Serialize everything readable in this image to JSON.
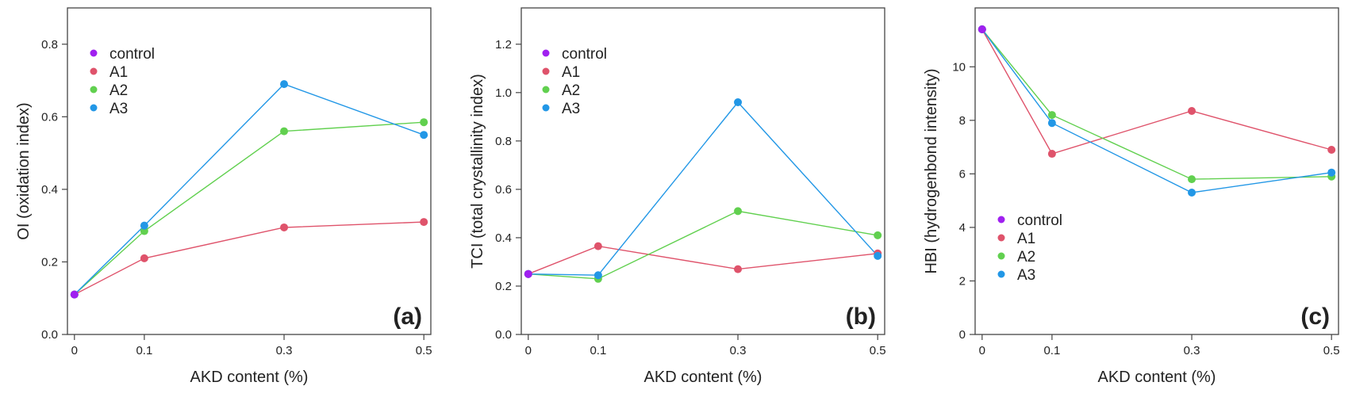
{
  "chart_data": [
    {
      "type": "line",
      "panel_tag": "(a)",
      "xlabel": "AKD content (%)",
      "ylabel": "OI (oxidation index)",
      "x": [
        0,
        0.1,
        0.3,
        0.5
      ],
      "x_tick_labels": [
        "0",
        "0.1",
        "0.3",
        "0.5"
      ],
      "ylim": [
        0,
        0.9
      ],
      "y_ticks": [
        0.0,
        0.2,
        0.4,
        0.6,
        0.8
      ],
      "y_tick_labels": [
        "0.0",
        "0.2",
        "0.4",
        "0.6",
        "0.8"
      ],
      "legend_position": "top-left",
      "series": [
        {
          "name": "control",
          "color": "#a020f0",
          "values": [
            0.11,
            null,
            null,
            null
          ]
        },
        {
          "name": "A1",
          "color": "#df536b",
          "values": [
            0.11,
            0.21,
            0.295,
            0.31
          ]
        },
        {
          "name": "A2",
          "color": "#61d04f",
          "values": [
            0.11,
            0.285,
            0.56,
            0.585
          ]
        },
        {
          "name": "A3",
          "color": "#2297e6",
          "values": [
            0.11,
            0.3,
            0.69,
            0.55
          ]
        }
      ]
    },
    {
      "type": "line",
      "panel_tag": "(b)",
      "xlabel": "AKD content (%)",
      "ylabel": "TCI (total crystallinity index)",
      "x": [
        0,
        0.1,
        0.3,
        0.5
      ],
      "x_tick_labels": [
        "0",
        "0.1",
        "0.3",
        "0.5"
      ],
      "ylim": [
        0,
        1.35
      ],
      "y_ticks": [
        0.0,
        0.2,
        0.4,
        0.6,
        0.8,
        1.0,
        1.2
      ],
      "y_tick_labels": [
        "0.0",
        "0.2",
        "0.4",
        "0.6",
        "0.8",
        "1.0",
        "1.2"
      ],
      "legend_position": "top-left",
      "series": [
        {
          "name": "control",
          "color": "#a020f0",
          "values": [
            0.25,
            null,
            null,
            null
          ]
        },
        {
          "name": "A1",
          "color": "#df536b",
          "values": [
            0.25,
            0.365,
            0.27,
            0.335
          ]
        },
        {
          "name": "A2",
          "color": "#61d04f",
          "values": [
            0.25,
            0.23,
            0.51,
            0.41
          ]
        },
        {
          "name": "A3",
          "color": "#2297e6",
          "values": [
            0.25,
            0.245,
            0.96,
            0.325
          ]
        }
      ]
    },
    {
      "type": "line",
      "panel_tag": "(c)",
      "xlabel": "AKD content (%)",
      "ylabel": "HBI (hydrogenbond intensity)",
      "x": [
        0,
        0.1,
        0.3,
        0.5
      ],
      "x_tick_labels": [
        "0",
        "0.1",
        "0.3",
        "0.5"
      ],
      "ylim": [
        0,
        12.2
      ],
      "y_ticks": [
        0,
        2,
        4,
        6,
        8,
        10
      ],
      "y_tick_labels": [
        "0",
        "2",
        "4",
        "6",
        "8",
        "10"
      ],
      "legend_position": "bottom-left",
      "series": [
        {
          "name": "control",
          "color": "#a020f0",
          "values": [
            11.4,
            null,
            null,
            null
          ]
        },
        {
          "name": "A1",
          "color": "#df536b",
          "values": [
            11.4,
            6.75,
            8.35,
            6.9
          ]
        },
        {
          "name": "A2",
          "color": "#61d04f",
          "values": [
            11.4,
            8.2,
            5.8,
            5.9
          ]
        },
        {
          "name": "A3",
          "color": "#2297e6",
          "values": [
            11.4,
            7.9,
            5.3,
            6.05
          ]
        }
      ]
    }
  ]
}
